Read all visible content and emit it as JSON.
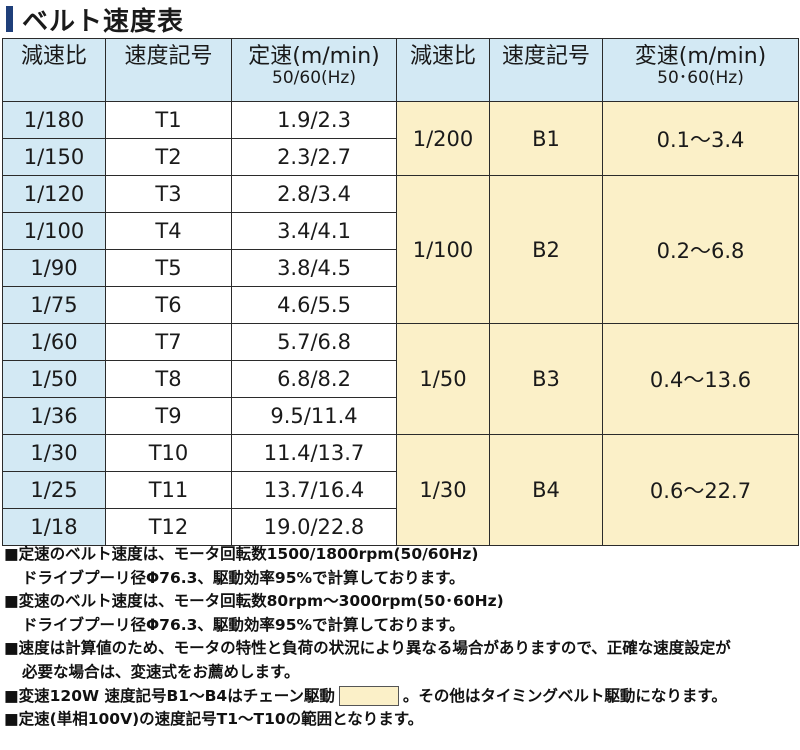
{
  "title": "ベルト速度表",
  "headers": {
    "ratio1": "減速比",
    "code1": "速度記号",
    "fixed_speed": "定速(m/min)",
    "fixed_speed_sub": "50/60(Hz)",
    "ratio2": "減速比",
    "code2": "速度記号",
    "var_speed": "変速(m/min)",
    "var_speed_sub": "50･60(Hz)"
  },
  "fixed_rows": [
    {
      "ratio": "1/180",
      "code": "T1",
      "speed": "1.9/2.3"
    },
    {
      "ratio": "1/150",
      "code": "T2",
      "speed": "2.3/2.7"
    },
    {
      "ratio": "1/120",
      "code": "T3",
      "speed": "2.8/3.4"
    },
    {
      "ratio": "1/100",
      "code": "T4",
      "speed": "3.4/4.1"
    },
    {
      "ratio": "1/90",
      "code": "T5",
      "speed": "3.8/4.5"
    },
    {
      "ratio": "1/75",
      "code": "T6",
      "speed": "4.6/5.5"
    },
    {
      "ratio": "1/60",
      "code": "T7",
      "speed": "5.7/6.8"
    },
    {
      "ratio": "1/50",
      "code": "T8",
      "speed": "6.8/8.2"
    },
    {
      "ratio": "1/36",
      "code": "T9",
      "speed": "9.5/11.4"
    },
    {
      "ratio": "1/30",
      "code": "T10",
      "speed": "11.4/13.7"
    },
    {
      "ratio": "1/25",
      "code": "T11",
      "speed": "13.7/16.4"
    },
    {
      "ratio": "1/18",
      "code": "T12",
      "speed": "19.0/22.8"
    }
  ],
  "variable_groups": [
    {
      "ratio": "1/200",
      "code": "B1",
      "speed": "0.1～3.4"
    },
    {
      "ratio": "1/100",
      "code": "B2",
      "speed": "0.2～6.8"
    },
    {
      "ratio": "1/50",
      "code": "B3",
      "speed": "0.4～13.6"
    },
    {
      "ratio": "1/30",
      "code": "B4",
      "speed": "0.6～22.7"
    }
  ],
  "notes": {
    "n1a": "■定速のベルト速度は、モータ回転数1500/1800rpm(50/60Hz)",
    "n1b": "ドライブプーリ径Φ76.3、駆動効率95%で計算しております。",
    "n2a": "■変速のベルト速度は、モータ回転数80rpm～3000rpm(50･60Hz)",
    "n2b": "ドライブプーリ径Φ76.3、駆動効率95%で計算しております。",
    "n3a": "■速度は計算値のため、モータの特性と負荷の状況により異なる場合がありますので、正確な速度設定が",
    "n3b": "必要な場合は、変速式をお薦めします。",
    "n4a": "■変速120W 速度記号B1～B4はチェーン駆動",
    "n4b": "。その他はタイミングベルト駆動になります。",
    "n5": "■定速(単相100V)の速度記号T1～T10の範囲となります。"
  },
  "colors": {
    "header_bg": "#d3e9f4",
    "chain_bg": "#fbf0c8",
    "title_bar": "#1f3f7a"
  }
}
